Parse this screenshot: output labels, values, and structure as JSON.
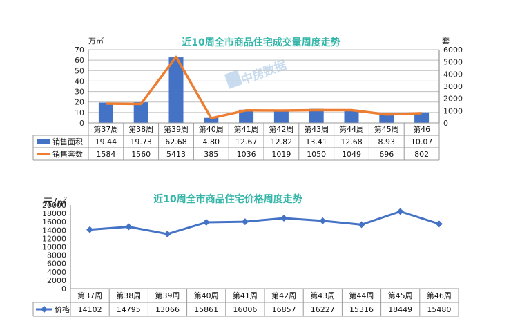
{
  "colors": {
    "bar": "#4472c4",
    "sales_line": "#ed7d31",
    "price_line": "#4472c4",
    "title": "#33b5a8",
    "watermark": "#c9dcef"
  },
  "watermark_text": "中房数据",
  "chart_data": [
    {
      "type": "bar",
      "title": "近10周全市商品住宅成交量周度走势",
      "ylabel_left": "万㎡",
      "ylabel_right": "套",
      "ylim_left": [
        0,
        70
      ],
      "ylim_right": [
        0,
        6000
      ],
      "yticks_left": [
        "0",
        "10",
        "20",
        "30",
        "40",
        "50",
        "60",
        "70"
      ],
      "yticks_right": [
        "0",
        "1000",
        "2000",
        "3000",
        "4000",
        "5000",
        "6000"
      ],
      "categories": [
        "第37周",
        "第38周",
        "第39周",
        "第40周",
        "第41周",
        "第42周",
        "第43周",
        "第44周",
        "第45周",
        "第46"
      ],
      "series": [
        {
          "name": "销售面积",
          "kind": "bar",
          "axis": "left",
          "values": [
            19.44,
            19.73,
            62.68,
            4.8,
            12.67,
            12.82,
            13.41,
            12.68,
            8.93,
            10.07
          ],
          "labels": [
            "19.44",
            "19.73",
            "62.68",
            "4.80",
            "12.67",
            "12.82",
            "13.41",
            "12.68",
            "8.93",
            "10.07"
          ]
        },
        {
          "name": "销售套数",
          "kind": "line",
          "axis": "right",
          "values": [
            1584,
            1560,
            5413,
            385,
            1036,
            1019,
            1050,
            1049,
            696,
            802
          ],
          "labels": [
            "1584",
            "1560",
            "5413",
            "385",
            "1036",
            "1019",
            "1050",
            "1049",
            "696",
            "802"
          ]
        }
      ],
      "grid": true,
      "legend": "table-left"
    },
    {
      "type": "line",
      "title": "近10周全市商品住宅价格周度走势",
      "ylabel": "元/㎡",
      "ylim": [
        0,
        20000
      ],
      "yticks": [
        "0",
        "2000",
        "4000",
        "6000",
        "8000",
        "10000",
        "12000",
        "14000",
        "16000",
        "18000",
        "20000"
      ],
      "categories": [
        "第37周",
        "第38周",
        "第39周",
        "第40周",
        "第41周",
        "第42周",
        "第43周",
        "第44周",
        "第45周",
        "第46周"
      ],
      "series": [
        {
          "name": "价格",
          "kind": "line",
          "values": [
            14102,
            14795,
            13066,
            15861,
            16006,
            16857,
            16227,
            15316,
            18449,
            15480
          ],
          "labels": [
            "14102",
            "14795",
            "13066",
            "15861",
            "16006",
            "16857",
            "16227",
            "15316",
            "18449",
            "15480"
          ]
        }
      ],
      "grid": false,
      "legend": "table-left"
    }
  ]
}
